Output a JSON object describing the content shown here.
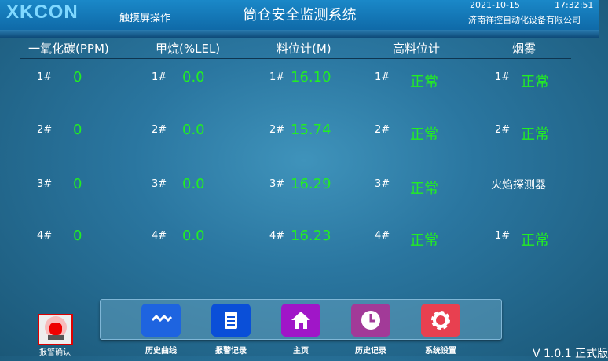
{
  "header": {
    "logo": "XKCON",
    "subtitle": "触摸屏操作",
    "title": "筒仓安全监测系统",
    "date": "2021-10-15",
    "time": "17:32:51",
    "company": "济南祥控自动化设备有限公司"
  },
  "columns": [
    "一氧化碳(PPM)",
    "甲烷(%LEL)",
    "料位计(M)",
    "高料位计",
    "烟雾"
  ],
  "rows": [
    {
      "co_label": "1#",
      "co": "0",
      "ch4_label": "1#",
      "ch4": "0.0",
      "level_label": "1#",
      "level": "16.10",
      "high_label": "1#",
      "high": "正常",
      "smoke_label": "1#",
      "smoke": "正常"
    },
    {
      "co_label": "2#",
      "co": "0",
      "ch4_label": "2#",
      "ch4": "0.0",
      "level_label": "2#",
      "level": "15.74",
      "high_label": "2#",
      "high": "正常",
      "smoke_label": "2#",
      "smoke": "正常"
    },
    {
      "co_label": "3#",
      "co": "0",
      "ch4_label": "3#",
      "ch4": "0.0",
      "level_label": "3#",
      "level": "16.29",
      "high_label": "3#",
      "high": "正常",
      "smoke_label": "火焰探测器",
      "smoke": ""
    },
    {
      "co_label": "4#",
      "co": "0",
      "ch4_label": "4#",
      "ch4": "0.0",
      "level_label": "4#",
      "level": "16.23",
      "high_label": "4#",
      "high": "正常",
      "smoke_label": "1#",
      "smoke": "正常"
    }
  ],
  "alarm": {
    "label": "报警确认",
    "icon": "siren-icon"
  },
  "nav": [
    {
      "label": "历史曲线",
      "icon": "wave-icon",
      "color": "#1e64e0"
    },
    {
      "label": "报警记录",
      "icon": "clipboard-icon",
      "color": "#0a4fd8"
    },
    {
      "label": "主页",
      "icon": "home-icon",
      "color": "#a016c8"
    },
    {
      "label": "历史记录",
      "icon": "clock-icon",
      "color": "#a23a98"
    },
    {
      "label": "系统设置",
      "icon": "gear-icon",
      "color": "#e84050"
    }
  ],
  "version": "V 1.0.1 正式版"
}
